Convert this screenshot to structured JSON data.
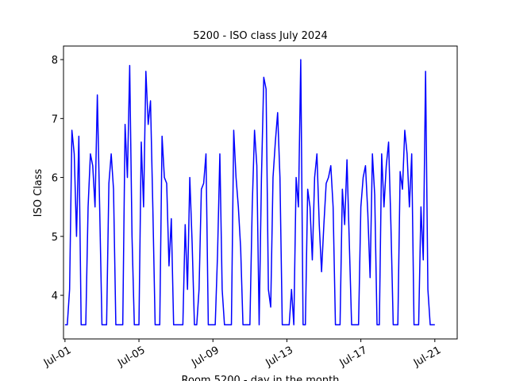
{
  "chart_data": {
    "type": "line",
    "title": "5200 - ISO class July 2024",
    "xlabel": "Room 5200 - day in the month",
    "ylabel": "ISO Class",
    "x": [
      1,
      1.125,
      1.25,
      1.375,
      1.5,
      1.625,
      1.75,
      1.875,
      2,
      2.125,
      2.25,
      2.375,
      2.5,
      2.625,
      2.75,
      2.875,
      3,
      3.125,
      3.25,
      3.375,
      3.5,
      3.625,
      3.75,
      3.875,
      4,
      4.125,
      4.25,
      4.375,
      4.5,
      4.625,
      4.75,
      4.875,
      5,
      5.125,
      5.25,
      5.375,
      5.5,
      5.625,
      5.75,
      5.875,
      6,
      6.125,
      6.25,
      6.375,
      6.5,
      6.625,
      6.75,
      6.875,
      7,
      7.125,
      7.25,
      7.375,
      7.5,
      7.625,
      7.75,
      7.875,
      8,
      8.125,
      8.25,
      8.375,
      8.5,
      8.625,
      8.75,
      8.875,
      9,
      9.125,
      9.25,
      9.375,
      9.5,
      9.625,
      9.75,
      9.875,
      10,
      10.125,
      10.25,
      10.375,
      10.5,
      10.625,
      10.75,
      10.875,
      11,
      11.125,
      11.25,
      11.375,
      11.5,
      11.625,
      11.75,
      11.875,
      12,
      12.125,
      12.25,
      12.375,
      12.5,
      12.625,
      12.75,
      12.875,
      13,
      13.125,
      13.25,
      13.375,
      13.5,
      13.625,
      13.75,
      13.875,
      14,
      14.125,
      14.25,
      14.375,
      14.5,
      14.625,
      14.75,
      14.875,
      15,
      15.125,
      15.25,
      15.375,
      15.5,
      15.625,
      15.75,
      15.875,
      16,
      16.125,
      16.25,
      16.375,
      16.5,
      16.625,
      16.75,
      16.875,
      17,
      17.125,
      17.25,
      17.375,
      17.5,
      17.625,
      17.75,
      17.875,
      18,
      18.125,
      18.25,
      18.375,
      18.5,
      18.625,
      18.75,
      18.875,
      19,
      19.125,
      19.25,
      19.375,
      19.5,
      19.625,
      19.75,
      19.875,
      20,
      20.125,
      20.25,
      20.375,
      20.5,
      20.625,
      20.75,
      20.875,
      21
    ],
    "series": [
      {
        "name": "ISO Class",
        "color": "#0000ff",
        "values": [
          3.5,
          3.5,
          4.1,
          6.8,
          6.4,
          5.0,
          6.7,
          3.5,
          3.5,
          3.5,
          5.5,
          6.4,
          6.2,
          5.5,
          7.4,
          5.5,
          3.5,
          3.5,
          3.5,
          5.9,
          6.4,
          5.8,
          3.5,
          3.5,
          3.5,
          3.5,
          6.9,
          6.0,
          7.9,
          5.0,
          3.5,
          3.5,
          3.5,
          6.6,
          5.5,
          7.8,
          6.9,
          7.3,
          5.5,
          3.5,
          3.5,
          3.5,
          6.7,
          6.0,
          5.9,
          4.5,
          5.3,
          3.5,
          3.5,
          3.5,
          3.5,
          3.5,
          5.2,
          4.1,
          6.0,
          4.9,
          3.5,
          3.5,
          4.1,
          5.8,
          5.9,
          6.4,
          3.5,
          3.5,
          3.5,
          3.5,
          4.7,
          6.4,
          4.1,
          3.5,
          3.5,
          3.5,
          3.5,
          6.8,
          6.0,
          5.5,
          4.8,
          3.5,
          3.5,
          3.5,
          3.5,
          5.5,
          6.8,
          6.2,
          3.5,
          6.0,
          7.7,
          7.5,
          4.1,
          3.8,
          6.0,
          6.6,
          7.1,
          6.0,
          3.5,
          3.5,
          3.5,
          3.5,
          4.1,
          3.5,
          6.0,
          5.5,
          8.0,
          3.5,
          3.5,
          5.8,
          5.5,
          4.6,
          6.0,
          6.4,
          5.2,
          4.4,
          5.2,
          5.9,
          6.0,
          6.2,
          5.5,
          3.5,
          3.5,
          3.5,
          5.8,
          5.2,
          6.3,
          4.9,
          3.5,
          3.5,
          3.5,
          3.5,
          5.5,
          6.0,
          6.2,
          5.4,
          4.3,
          6.4,
          5.7,
          3.5,
          3.5,
          6.4,
          5.5,
          6.2,
          6.6,
          5.2,
          3.5,
          3.5,
          3.5,
          6.1,
          5.8,
          6.8,
          6.4,
          5.5,
          6.4,
          3.5,
          3.5,
          3.5,
          5.5,
          4.6,
          7.8,
          4.1,
          3.5,
          3.5,
          3.5
        ]
      }
    ],
    "xlim": [
      0.92,
      22.21
    ],
    "ylim": [
      3.26,
      8.23
    ],
    "xticks": [
      {
        "value": 1,
        "label": "Jul-01"
      },
      {
        "value": 5,
        "label": "Jul-05"
      },
      {
        "value": 9,
        "label": "Jul-09"
      },
      {
        "value": 13,
        "label": "Jul-13"
      },
      {
        "value": 17,
        "label": "Jul-17"
      },
      {
        "value": 21,
        "label": "Jul-21"
      }
    ],
    "yticks": [
      4,
      5,
      6,
      7,
      8
    ]
  }
}
